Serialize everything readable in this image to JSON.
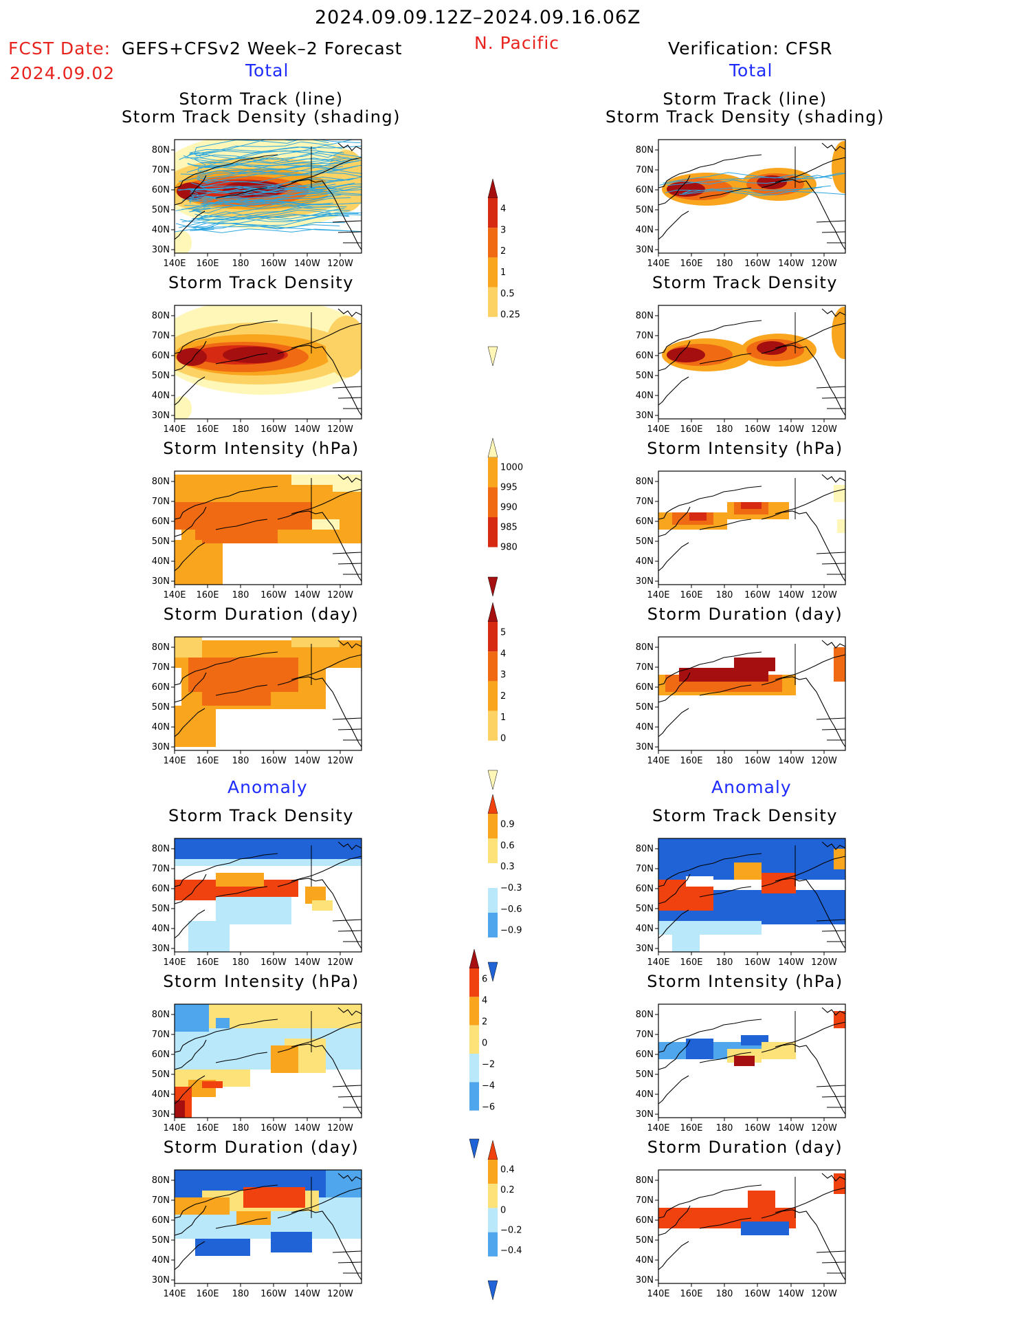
{
  "header": {
    "date_range": "2024.09.09.12Z–2024.09.16.06Z",
    "fcst_label": "FCST Date:",
    "model": "GEFS+CFSv2 Week–2 Forecast",
    "fcst_date": "2024.09.02",
    "region": "N. Pacific",
    "verification": "Verification: CFSR"
  },
  "sections": {
    "total": "Total",
    "anomaly": "Anomaly"
  },
  "panel_titles": {
    "track_line": "Storm Track (line)",
    "track_density_shading": "Storm Track Density (shading)",
    "track_density": "Storm Track Density",
    "intensity": "Storm Intensity (hPa)",
    "duration": "Storm Duration (day)"
  },
  "axes": {
    "lat_ticks": [
      "80N",
      "70N",
      "60N",
      "50N",
      "40N",
      "30N"
    ],
    "lon_ticks": [
      "140E",
      "160E",
      "180",
      "160W",
      "140W",
      "120W"
    ]
  },
  "colorbars": {
    "density": [
      "4",
      "3",
      "2",
      "1",
      "0.5",
      "0.25"
    ],
    "intensity": [
      "1000",
      "995",
      "990",
      "985",
      "980"
    ],
    "duration": [
      "5",
      "4",
      "3",
      "2",
      "1",
      "0"
    ],
    "density_anom": [
      "0.9",
      "0.6",
      "0.3",
      "−0.3",
      "−0.6",
      "−0.9"
    ],
    "intensity_anom": [
      "6",
      "4",
      "2",
      "0",
      "−2",
      "−4",
      "−6"
    ],
    "duration_anom": [
      "0.4",
      "0.2",
      "0",
      "−0.2",
      "−0.4"
    ]
  },
  "colors": {
    "text_red": "#e8231e",
    "text_blue": "#1e2bff",
    "track_lines": "#2aa6e0",
    "warm_scale": [
      "#fff7b8",
      "#fdd264",
      "#f9a51e",
      "#f06a14",
      "#d62a12",
      "#a60f0f"
    ],
    "intensity_scale": [
      "#fff7b8",
      "#f9a51e",
      "#f06a14",
      "#d62a12",
      "#a60f0f"
    ],
    "anom_warm": [
      "#fde27a",
      "#f9a51e",
      "#f0420f"
    ],
    "anom_cool": [
      "#b9e8fb",
      "#4fa6ec",
      "#1f63d6"
    ]
  }
}
